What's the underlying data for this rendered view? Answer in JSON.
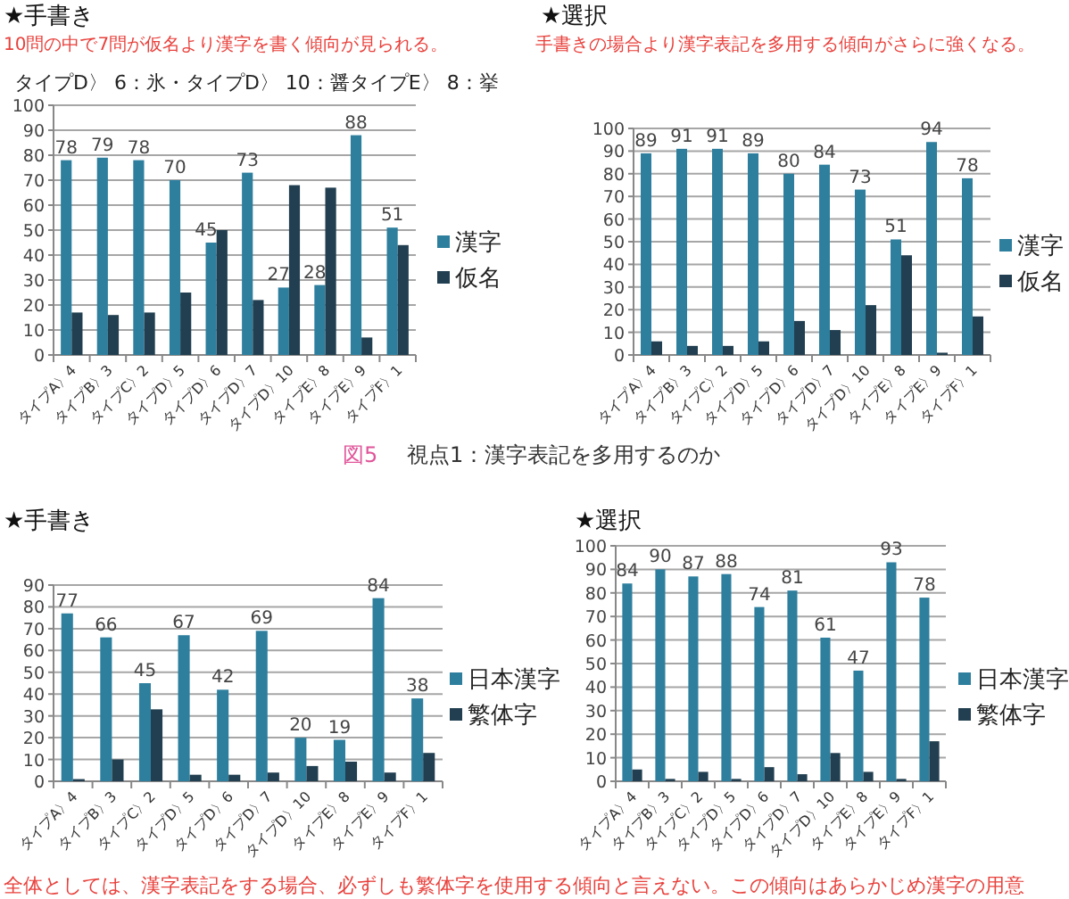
{
  "chart_data": [
    {
      "type": "bar",
      "title": "★手書き",
      "subtitle": "10問の中で7問が仮名より漢字を書く傾向が見られる。",
      "annotations": [
        "タイプD〉 6：氷・タイプD〉 10：醤タイプE〉 8：挙",
        "図5",
        "視点1：漢字表記を多用するのか"
      ],
      "categories": [
        "タイプA〉4",
        "タイプB〉3",
        "タイプC〉2",
        "タイプD〉5",
        "タイプD〉6",
        "タイプD〉7",
        "タイプD〉10",
        "タイプE〉8",
        "タイプE〉9",
        "タイプF〉1"
      ],
      "series": [
        {
          "name": "漢字",
          "color": "#2e7f9e",
          "values": [
            78,
            79,
            78,
            70,
            45,
            73,
            27,
            28,
            88,
            51
          ],
          "value_labels": [
            "78",
            "79",
            "78",
            "70",
            "45",
            "73",
            "27",
            "28",
            "88",
            "51"
          ]
        },
        {
          "name": "仮名",
          "color": "#213f50",
          "values": [
            17,
            16,
            17,
            25,
            50,
            22,
            68,
            67,
            7,
            44
          ]
        }
      ],
      "ylim": [
        0,
        100
      ],
      "yticks": [
        0,
        10,
        20,
        30,
        40,
        50,
        60,
        70,
        80,
        90,
        100
      ],
      "grid": "y",
      "legend": "right"
    },
    {
      "type": "bar",
      "title": "★選択",
      "subtitle": "手書きの場合より漢字表記を多用する傾向がさらに強くなる。",
      "categories": [
        "タイプA〉4",
        "タイプB〉3",
        "タイプC〉2",
        "タイプD〉5",
        "タイプD〉6",
        "タイプD〉7",
        "タイプD〉10",
        "タイプE〉8",
        "タイプE〉9",
        "タイプF〉1"
      ],
      "series": [
        {
          "name": "漢字",
          "color": "#2e7f9e",
          "values": [
            89,
            91,
            91,
            89,
            80,
            84,
            73,
            51,
            94,
            78
          ],
          "value_labels": [
            "89",
            "91",
            "91",
            "89",
            "80",
            "84",
            "73",
            "51",
            "94",
            "78"
          ]
        },
        {
          "name": "仮名",
          "color": "#213f50",
          "values": [
            6,
            4,
            4,
            6,
            15,
            11,
            22,
            44,
            1,
            17
          ]
        }
      ],
      "ylim": [
        0,
        100
      ],
      "yticks": [
        0,
        10,
        20,
        30,
        40,
        50,
        60,
        70,
        80,
        90,
        100
      ],
      "grid": "y",
      "legend": "right"
    },
    {
      "type": "bar",
      "title": "★手書き",
      "annotations": [
        "全体としては、漢字表記をする場合、必ずしも繁体字を使用する傾向と言えない。この傾向はあらかじめ漢字の用意"
      ],
      "categories": [
        "タイプA〉4",
        "タイプB〉3",
        "タイプC〉2",
        "タイプD〉5",
        "タイプD〉6",
        "タイプD〉7",
        "タイプD〉10",
        "タイプE〉8",
        "タイプE〉9",
        "タイプF〉1"
      ],
      "series": [
        {
          "name": "日本漢字",
          "color": "#2e7f9e",
          "values": [
            77,
            66,
            45,
            67,
            42,
            69,
            20,
            19,
            84,
            38
          ],
          "value_labels": [
            "77",
            "66",
            "45",
            "67",
            "42",
            "69",
            "20",
            "19",
            "84",
            "38"
          ]
        },
        {
          "name": "繁体字",
          "color": "#213f50",
          "values": [
            1,
            10,
            33,
            3,
            3,
            4,
            7,
            9,
            4,
            13
          ]
        }
      ],
      "ylim": [
        0,
        90
      ],
      "yticks": [
        0,
        10,
        20,
        30,
        40,
        50,
        60,
        70,
        80,
        90
      ],
      "grid": "y",
      "legend": "right"
    },
    {
      "type": "bar",
      "title": "★選択",
      "categories": [
        "タイプA〉4",
        "タイプB〉3",
        "タイプC〉2",
        "タイプD〉5",
        "タイプD〉6",
        "タイプD〉7",
        "タイプD〉10",
        "タイプE〉8",
        "タイプE〉9",
        "タイプF〉1"
      ],
      "series": [
        {
          "name": "日本漢字",
          "color": "#2e7f9e",
          "values": [
            84,
            90,
            87,
            88,
            74,
            81,
            61,
            47,
            93,
            78
          ],
          "value_labels": [
            "84",
            "90",
            "87",
            "88",
            "74",
            "81",
            "61",
            "47",
            "93",
            "78"
          ]
        },
        {
          "name": "繁体字",
          "color": "#213f50",
          "values": [
            5,
            1,
            4,
            1,
            6,
            3,
            12,
            4,
            1,
            17
          ]
        }
      ],
      "ylim": [
        0,
        100
      ],
      "yticks": [
        0,
        10,
        20,
        30,
        40,
        50,
        60,
        70,
        80,
        90,
        100
      ],
      "grid": "y",
      "legend": "right"
    }
  ]
}
